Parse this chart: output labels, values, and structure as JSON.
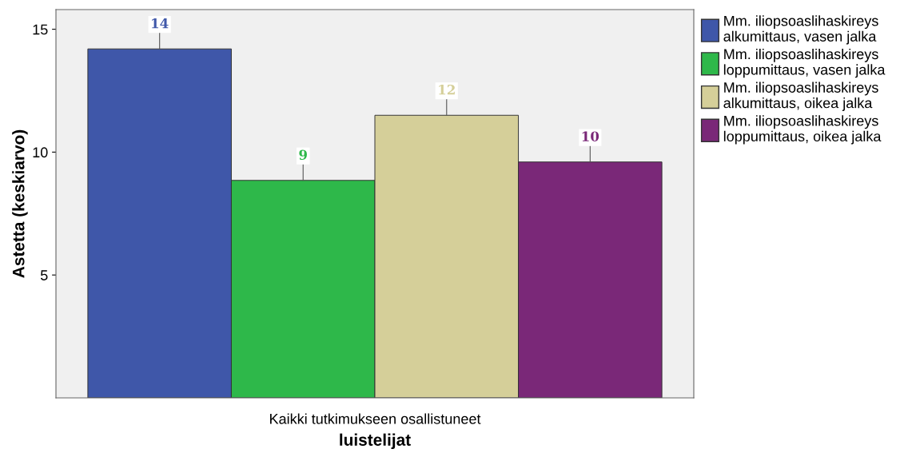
{
  "chart_data": {
    "type": "bar",
    "xlabel": "luistelijat",
    "ylabel": "Astetta (keskiarvo)",
    "categories": [
      "Kaikki tutkimukseen osallistuneet"
    ],
    "series": [
      {
        "name": "Mm. iliopsoaslihaskireys\nalkumittaus, vasen jalka",
        "color": "#3f57a9",
        "values": [
          14.2
        ],
        "value_labels": [
          "14"
        ]
      },
      {
        "name": "Mm. iliopsoaslihaskireys\nloppumittaus, vasen jalka",
        "color": "#2eb84a",
        "values": [
          8.85
        ],
        "value_labels": [
          "9"
        ]
      },
      {
        "name": "Mm. iliopsoaslihaskireys\nalkumittaus, oikea jalka",
        "color": "#d5cf99",
        "values": [
          11.5
        ],
        "value_labels": [
          "12"
        ]
      },
      {
        "name": "Mm. iliopsoaslihaskireys\nloppumittaus, oikea jalka",
        "color": "#7a2878",
        "values": [
          9.6
        ],
        "value_labels": [
          "10"
        ]
      }
    ],
    "ylim": [
      0,
      15.8
    ],
    "yticks": [
      5,
      10,
      15
    ],
    "grid": false,
    "legend": "right"
  }
}
